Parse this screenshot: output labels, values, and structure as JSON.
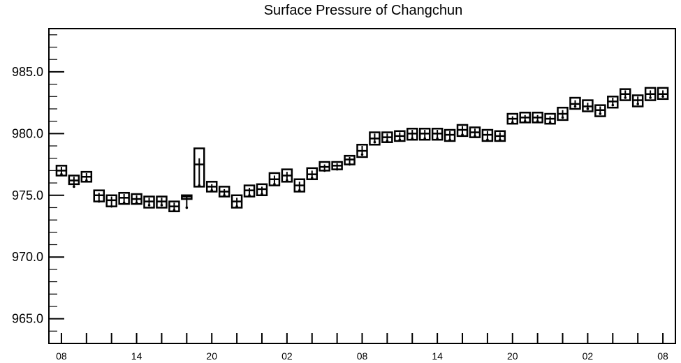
{
  "chart_data": {
    "type": "boxplot",
    "title": "Surface Pressure of Changchun",
    "xlabel": "",
    "ylabel": "",
    "ylim": [
      963.0,
      988.5
    ],
    "y_ticks": [
      965.0,
      970.0,
      975.0,
      980.0,
      985.0
    ],
    "y_tick_labels": [
      "965.0",
      "970.0",
      "975.0",
      "980.0",
      "985.0"
    ],
    "x_tick_labels": [
      "08",
      "14",
      "20",
      "02",
      "08",
      "14",
      "20",
      "02",
      "08"
    ],
    "x_tick_label_steps": [
      0,
      6,
      12,
      18,
      24,
      30,
      36,
      42,
      48
    ],
    "x_range_steps": [
      -1,
      49
    ],
    "grid": false,
    "series": [
      {
        "x": [
          0,
          1,
          2,
          3,
          4,
          5,
          6,
          7,
          8,
          9,
          10,
          11,
          12,
          13,
          14,
          15,
          16,
          17,
          18,
          19,
          20,
          21,
          22,
          23,
          24,
          25,
          26,
          27,
          28,
          29,
          30,
          31,
          32,
          33,
          34,
          35,
          36,
          37,
          38,
          39,
          40,
          41,
          42,
          43,
          44,
          45,
          46,
          47,
          48
        ],
        "q1": [
          976.6,
          975.9,
          976.1,
          974.5,
          974.1,
          974.3,
          974.3,
          974.0,
          974.0,
          973.7,
          974.7,
          975.7,
          975.3,
          974.9,
          974.0,
          974.9,
          975.0,
          975.8,
          976.1,
          975.3,
          976.3,
          977.0,
          977.1,
          977.5,
          978.1,
          979.1,
          979.3,
          979.4,
          979.5,
          979.5,
          979.5,
          979.4,
          979.8,
          979.7,
          979.4,
          979.4,
          980.8,
          980.9,
          980.9,
          980.8,
          981.1,
          982.0,
          981.8,
          981.4,
          982.1,
          982.7,
          982.2,
          982.7,
          982.8
        ],
        "median": [
          977.0,
          976.2,
          976.5,
          975.0,
          974.6,
          974.8,
          974.7,
          974.5,
          974.5,
          974.1,
          974.9,
          977.5,
          975.7,
          975.3,
          974.5,
          975.4,
          975.5,
          976.3,
          976.6,
          975.8,
          976.7,
          977.3,
          977.4,
          977.9,
          978.6,
          979.6,
          979.7,
          979.8,
          980.0,
          980.0,
          980.0,
          979.9,
          980.3,
          980.1,
          979.9,
          979.8,
          981.2,
          981.3,
          981.3,
          981.2,
          981.6,
          982.4,
          982.2,
          981.9,
          982.6,
          983.2,
          982.7,
          983.2,
          983.2
        ],
        "q3": [
          977.4,
          976.6,
          976.9,
          975.4,
          975.0,
          975.2,
          975.1,
          974.9,
          974.9,
          974.5,
          975.0,
          978.8,
          976.1,
          975.7,
          975.0,
          975.8,
          975.9,
          976.8,
          977.1,
          976.3,
          977.2,
          977.7,
          977.7,
          978.2,
          979.1,
          980.1,
          980.1,
          980.2,
          980.4,
          980.4,
          980.4,
          980.3,
          980.7,
          980.5,
          980.3,
          980.2,
          981.6,
          981.7,
          981.7,
          981.6,
          982.1,
          982.9,
          982.7,
          982.3,
          983.0,
          983.6,
          983.1,
          983.7,
          983.7
        ],
        "whisker_low": [
          976.7,
          975.7,
          976.2,
          974.5,
          974.1,
          974.4,
          974.4,
          974.2,
          974.2,
          973.8,
          974.0,
          975.8,
          975.4,
          975.0,
          974.1,
          975.0,
          975.1,
          975.9,
          976.2,
          975.4,
          976.4,
          977.0,
          977.1,
          977.5,
          978.3,
          979.3,
          979.4,
          979.5,
          979.6,
          979.6,
          979.6,
          979.5,
          979.9,
          979.8,
          979.5,
          979.5,
          980.9,
          981.0,
          981.0,
          980.9,
          981.3,
          982.2,
          982.0,
          981.6,
          982.3,
          982.9,
          982.4,
          982.9,
          983.0
        ],
        "whisker_high": [
          977.3,
          976.5,
          976.8,
          975.2,
          974.9,
          975.1,
          975.0,
          974.8,
          974.8,
          974.4,
          975.0,
          978.0,
          975.9,
          975.5,
          974.8,
          975.6,
          975.7,
          976.6,
          976.9,
          976.1,
          977.0,
          977.5,
          977.6,
          978.1,
          979.0,
          980.0,
          980.0,
          980.1,
          980.3,
          980.3,
          980.3,
          980.2,
          980.6,
          980.4,
          980.2,
          980.1,
          981.4,
          981.5,
          981.5,
          981.4,
          981.9,
          982.7,
          982.5,
          982.2,
          982.9,
          983.5,
          983.0,
          983.5,
          983.5
        ]
      }
    ]
  }
}
